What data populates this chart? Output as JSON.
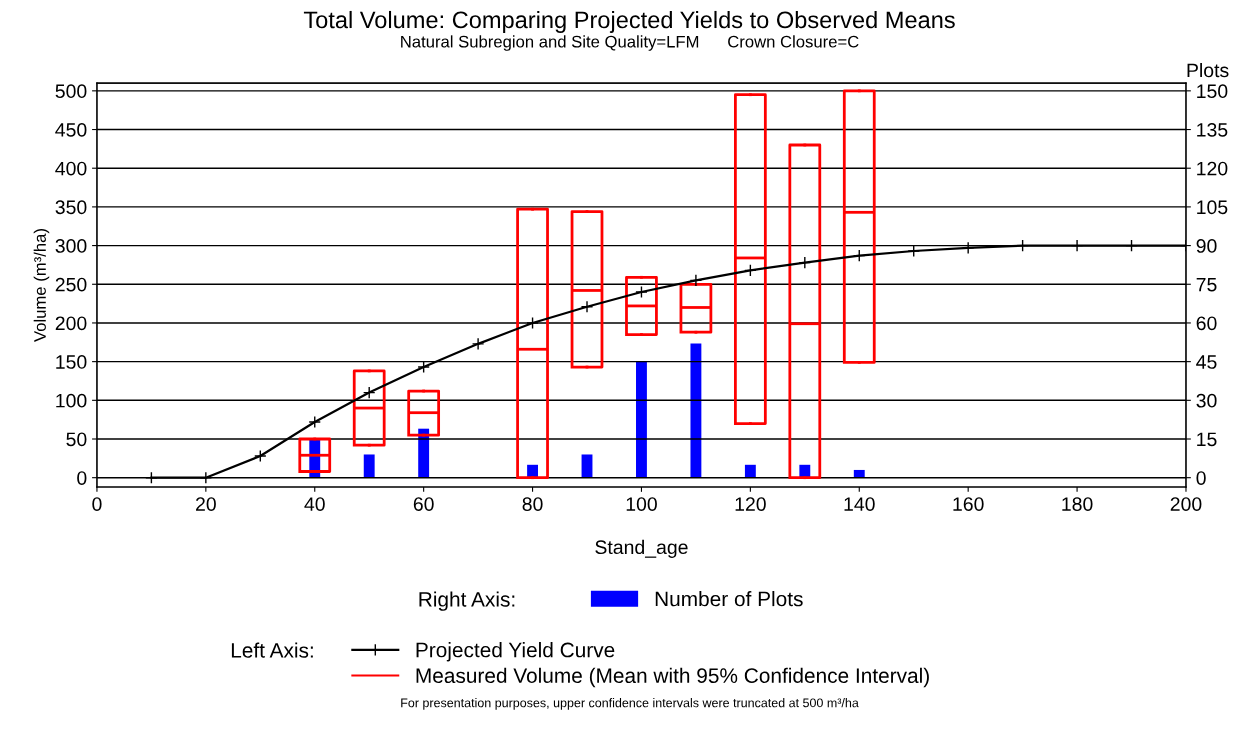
{
  "chart_data": {
    "type": "line",
    "title": "Total Volume: Comparing Projected Yields to Observed Means",
    "subtitle": "Natural Subregion and Site Quality=LFM      Crown Closure=C",
    "xlabel": "Stand_age",
    "ylabel": "Volume (m³/ha)",
    "y2label": "Plots",
    "xlim": [
      0,
      200
    ],
    "xticks": [
      0,
      20,
      40,
      60,
      80,
      100,
      120,
      140,
      160,
      180,
      200
    ],
    "ylim": [
      -12,
      510
    ],
    "yticks": [
      0,
      50,
      100,
      150,
      200,
      250,
      300,
      350,
      400,
      450,
      500
    ],
    "y2lim": [
      -3.6,
      153
    ],
    "y2ticks": [
      0,
      15,
      30,
      45,
      60,
      75,
      90,
      105,
      120,
      135,
      150
    ],
    "grid": "y",
    "legend": "bottom",
    "annotations": [
      "Right Axis:",
      "Left Axis:",
      "For presentation purposes, upper confidence intervals were truncated at 500 m³/ha"
    ],
    "series": [
      {
        "name": "Number of Plots",
        "type": "bar",
        "axis": "y2",
        "color": "#0000ff",
        "x": [
          40,
          50,
          60,
          80,
          90,
          100,
          110,
          120,
          130,
          140
        ],
        "values": [
          15,
          9,
          19,
          5,
          9,
          45,
          52,
          5,
          5,
          3
        ]
      },
      {
        "name": "Projected Yield Curve",
        "axis": "y",
        "color": "#000000",
        "marker": "cross",
        "line_style": "solid",
        "x": [
          10,
          20,
          30,
          40,
          50,
          60,
          70,
          80,
          90,
          100,
          110,
          120,
          130,
          140,
          150,
          160,
          170,
          180,
          190,
          200
        ],
        "values": [
          0,
          0,
          28,
          72,
          110,
          143,
          173,
          200,
          221,
          240,
          255,
          268,
          278,
          287,
          293,
          297,
          300,
          300,
          300,
          300
        ]
      },
      {
        "name": "Measured Volume (Mean with 95% Confidence Interval)",
        "type": "box",
        "axis": "y",
        "color": "#ff0000",
        "x": [
          40,
          50,
          60,
          80,
          90,
          100,
          110,
          120,
          130,
          140
        ],
        "boxes": [
          {
            "low": 8,
            "q1": 8,
            "median": 29,
            "q3": 50,
            "high": 50
          },
          {
            "low": 42,
            "q1": 42,
            "median": 90,
            "q3": 138,
            "high": 138
          },
          {
            "low": 55,
            "q1": 55,
            "median": 84,
            "q3": 112,
            "high": 112
          },
          {
            "low": 0,
            "q1": 0,
            "median": 166,
            "q3": 347,
            "high": 347
          },
          {
            "low": 143,
            "q1": 143,
            "median": 242,
            "q3": 344,
            "high": 344
          },
          {
            "low": 185,
            "q1": 185,
            "median": 222,
            "q3": 259,
            "high": 259
          },
          {
            "low": 188,
            "q1": 188,
            "median": 220,
            "q3": 250,
            "high": 250
          },
          {
            "low": 70,
            "q1": 70,
            "median": 284,
            "q3": 495,
            "high": 495
          },
          {
            "low": 0,
            "q1": 0,
            "median": 199,
            "q3": 430,
            "high": 430
          },
          {
            "low": 149,
            "q1": 149,
            "median": 343,
            "q3": 500,
            "high": 500
          }
        ]
      }
    ]
  }
}
